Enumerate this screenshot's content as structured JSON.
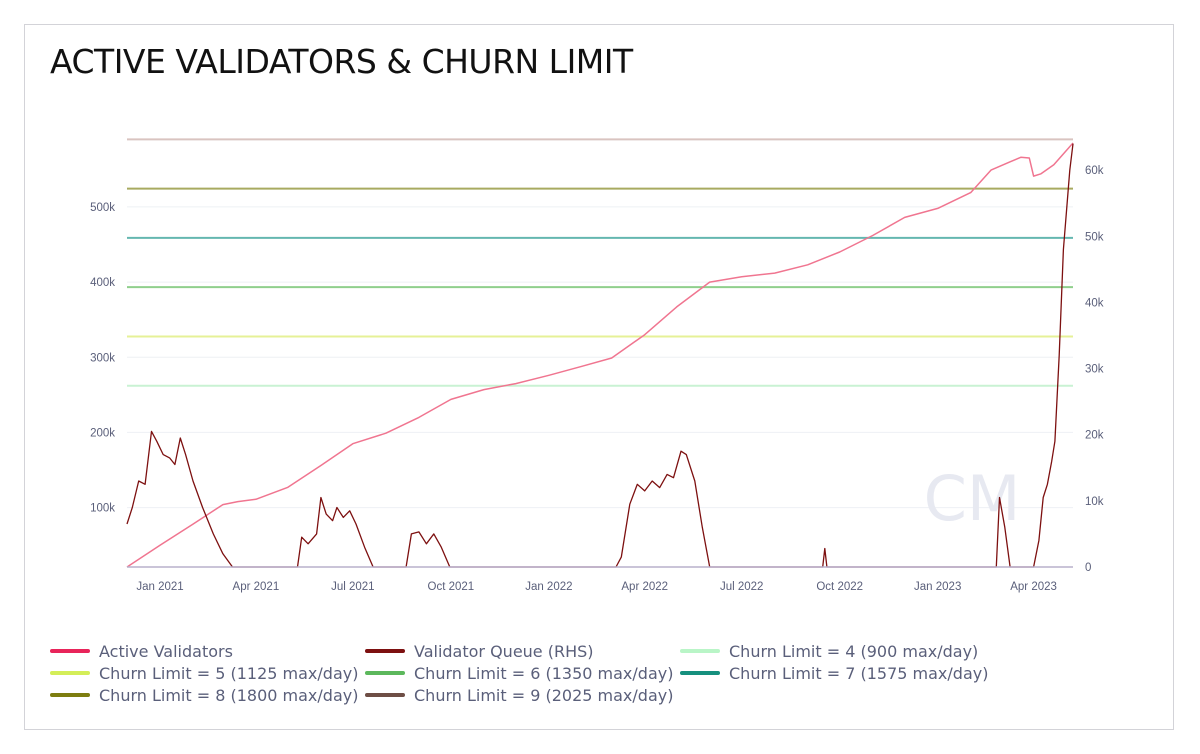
{
  "title": "ACTIVE VALIDATORS & CHURN LIMIT",
  "watermark": "CM",
  "chart_data": {
    "type": "line",
    "title": "ACTIVE VALIDATORS & CHURN LIMIT",
    "x_start": "2020-12-01",
    "x_end": "2023-05-08",
    "x_ticks": [
      {
        "label": "Jan 2021",
        "date": "2021-01-01"
      },
      {
        "label": "Apr 2021",
        "date": "2021-04-01"
      },
      {
        "label": "Jul 2021",
        "date": "2021-07-01"
      },
      {
        "label": "Oct 2021",
        "date": "2021-10-01"
      },
      {
        "label": "Jan 2022",
        "date": "2022-01-01"
      },
      {
        "label": "Apr 2022",
        "date": "2022-04-01"
      },
      {
        "label": "Jul 2022",
        "date": "2022-07-01"
      },
      {
        "label": "Oct 2022",
        "date": "2022-10-01"
      },
      {
        "label": "Jan 2023",
        "date": "2023-01-01"
      },
      {
        "label": "Apr 2023",
        "date": "2023-04-01"
      }
    ],
    "y_left": {
      "min": 21000,
      "max": 585000,
      "ticks": [
        {
          "v": 100000,
          "label": "100k"
        },
        {
          "v": 200000,
          "label": "200k"
        },
        {
          "v": 300000,
          "label": "300k"
        },
        {
          "v": 400000,
          "label": "400k"
        },
        {
          "v": 500000,
          "label": "500k"
        }
      ]
    },
    "y_right": {
      "min": 0,
      "max": 64100,
      "ticks": [
        {
          "v": 0,
          "label": "0"
        },
        {
          "v": 10000,
          "label": "10k"
        },
        {
          "v": 20000,
          "label": "20k"
        },
        {
          "v": 30000,
          "label": "30k"
        },
        {
          "v": 40000,
          "label": "40k"
        },
        {
          "v": 50000,
          "label": "50k"
        },
        {
          "v": 60000,
          "label": "60k"
        }
      ]
    },
    "grid": true,
    "series": [
      {
        "name": "Active Validators",
        "axis": "left",
        "color": "#f07590",
        "legend_color": "#e8245a",
        "points": [
          [
            "2020-12-01",
            21000
          ],
          [
            "2021-01-01",
            50000
          ],
          [
            "2021-02-01",
            78000
          ],
          [
            "2021-03-01",
            104000
          ],
          [
            "2021-03-15",
            108000
          ],
          [
            "2021-04-01",
            111000
          ],
          [
            "2021-05-01",
            127000
          ],
          [
            "2021-06-01",
            156000
          ],
          [
            "2021-07-01",
            185000
          ],
          [
            "2021-08-01",
            199000
          ],
          [
            "2021-09-01",
            220000
          ],
          [
            "2021-10-01",
            244000
          ],
          [
            "2021-11-01",
            257000
          ],
          [
            "2021-12-01",
            265000
          ],
          [
            "2022-01-01",
            276000
          ],
          [
            "2022-02-01",
            288000
          ],
          [
            "2022-03-01",
            299000
          ],
          [
            "2022-04-01",
            330000
          ],
          [
            "2022-05-01",
            367000
          ],
          [
            "2022-06-01",
            400000
          ],
          [
            "2022-07-01",
            407000
          ],
          [
            "2022-08-01",
            412000
          ],
          [
            "2022-09-01",
            423000
          ],
          [
            "2022-10-01",
            440000
          ],
          [
            "2022-11-01",
            462000
          ],
          [
            "2022-12-01",
            486000
          ],
          [
            "2023-01-01",
            498000
          ],
          [
            "2023-02-01",
            519000
          ],
          [
            "2023-02-20",
            549000
          ],
          [
            "2023-03-10",
            560000
          ],
          [
            "2023-03-20",
            566000
          ],
          [
            "2023-03-28",
            565000
          ],
          [
            "2023-04-01",
            541000
          ],
          [
            "2023-04-08",
            544000
          ],
          [
            "2023-04-20",
            556000
          ],
          [
            "2023-05-08",
            585000
          ]
        ]
      },
      {
        "name": "Validator Queue (RHS)",
        "axis": "right",
        "color": "#7d1010",
        "legend_color": "#7d1010",
        "points": [
          [
            "2020-12-01",
            6500
          ],
          [
            "2020-12-06",
            9000
          ],
          [
            "2020-12-12",
            13000
          ],
          [
            "2020-12-18",
            12500
          ],
          [
            "2020-12-24",
            20500
          ],
          [
            "2020-12-29",
            19000
          ],
          [
            "2021-01-04",
            17000
          ],
          [
            "2021-01-10",
            16500
          ],
          [
            "2021-01-15",
            15500
          ],
          [
            "2021-01-20",
            19500
          ],
          [
            "2021-01-25",
            17000
          ],
          [
            "2021-02-01",
            13000
          ],
          [
            "2021-02-10",
            9000
          ],
          [
            "2021-02-20",
            5000
          ],
          [
            "2021-03-01",
            2000
          ],
          [
            "2021-03-10",
            0
          ],
          [
            "2021-05-10",
            0
          ],
          [
            "2021-05-14",
            4500
          ],
          [
            "2021-05-20",
            3500
          ],
          [
            "2021-05-28",
            5000
          ],
          [
            "2021-06-01",
            10500
          ],
          [
            "2021-06-06",
            8000
          ],
          [
            "2021-06-12",
            7000
          ],
          [
            "2021-06-16",
            9000
          ],
          [
            "2021-06-22",
            7500
          ],
          [
            "2021-06-28",
            8500
          ],
          [
            "2021-07-04",
            6500
          ],
          [
            "2021-07-12",
            3000
          ],
          [
            "2021-07-20",
            0
          ],
          [
            "2021-08-20",
            0
          ],
          [
            "2021-08-25",
            5000
          ],
          [
            "2021-09-01",
            5300
          ],
          [
            "2021-09-08",
            3500
          ],
          [
            "2021-09-15",
            5000
          ],
          [
            "2021-09-22",
            3000
          ],
          [
            "2021-09-30",
            0
          ],
          [
            "2022-03-05",
            0
          ],
          [
            "2022-03-10",
            1500
          ],
          [
            "2022-03-18",
            9500
          ],
          [
            "2022-03-25",
            12500
          ],
          [
            "2022-04-01",
            11500
          ],
          [
            "2022-04-08",
            13000
          ],
          [
            "2022-04-15",
            12000
          ],
          [
            "2022-04-22",
            14000
          ],
          [
            "2022-04-28",
            13500
          ],
          [
            "2022-05-05",
            17500
          ],
          [
            "2022-05-10",
            17000
          ],
          [
            "2022-05-18",
            13000
          ],
          [
            "2022-05-25",
            6000
          ],
          [
            "2022-06-01",
            0
          ],
          [
            "2022-09-15",
            0
          ],
          [
            "2022-09-17",
            2800
          ],
          [
            "2022-09-19",
            0
          ],
          [
            "2023-02-25",
            0
          ],
          [
            "2023-02-28",
            10500
          ],
          [
            "2023-03-05",
            6000
          ],
          [
            "2023-03-10",
            0
          ],
          [
            "2023-04-01",
            0
          ],
          [
            "2023-04-06",
            4000
          ],
          [
            "2023-04-10",
            10500
          ],
          [
            "2023-04-14",
            12500
          ],
          [
            "2023-04-18",
            16000
          ],
          [
            "2023-04-21",
            19000
          ],
          [
            "2023-04-25",
            32000
          ],
          [
            "2023-04-29",
            48000
          ],
          [
            "2023-05-02",
            54000
          ],
          [
            "2023-05-05",
            60000
          ],
          [
            "2023-05-08",
            64000
          ]
        ]
      }
    ],
    "reference_lines": [
      {
        "name": "Churn Limit = 4 (900 max/day)",
        "value": 262144,
        "color": "#c9f2d3",
        "legend_color": "#b9f5c7"
      },
      {
        "name": "Churn Limit = 5 (1125 max/day)",
        "value": 327680,
        "color": "#e6f197",
        "legend_color": "#d4ee58"
      },
      {
        "name": "Churn Limit = 6 (1350 max/day)",
        "value": 393216,
        "color": "#8fcf8c",
        "legend_color": "#5cb85c"
      },
      {
        "name": "Churn Limit = 7 (1575 max/day)",
        "value": 458752,
        "color": "#64b7b0",
        "legend_color": "#16907e"
      },
      {
        "name": "Churn Limit = 8 (1800 max/day)",
        "value": 524288,
        "color": "#a8aa60",
        "legend_color": "#7d7d10"
      },
      {
        "name": "Churn Limit = 9 (2025 max/day)",
        "value": 589824,
        "color": "#d9c4c0",
        "legend_color": "#6e4e45"
      }
    ]
  },
  "legend": [
    {
      "label": "Active Validators",
      "color": "#e8245a"
    },
    {
      "label": "Validator Queue (RHS)",
      "color": "#7d1010"
    },
    {
      "label": "Churn Limit = 4 (900 max/day)",
      "color": "#b9f5c7"
    },
    {
      "label": "Churn Limit = 5 (1125 max/day)",
      "color": "#d4ee58"
    },
    {
      "label": "Churn Limit = 6 (1350 max/day)",
      "color": "#5cb85c"
    },
    {
      "label": "Churn Limit = 7 (1575 max/day)",
      "color": "#16907e"
    },
    {
      "label": "Churn Limit = 8 (1800 max/day)",
      "color": "#7d7d10"
    },
    {
      "label": "Churn Limit = 9 (2025 max/day)",
      "color": "#6e4e45"
    }
  ]
}
